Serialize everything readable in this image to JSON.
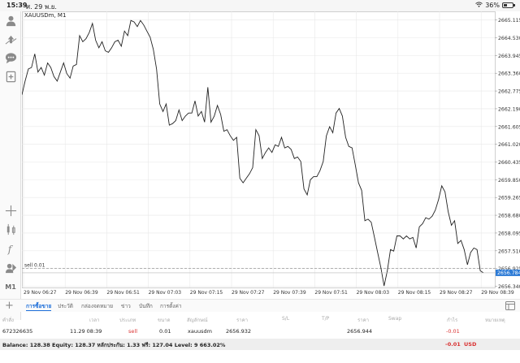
{
  "status_bar": {
    "time": "15:39",
    "date": "ศ. 29 พ.ย.",
    "battery": "36%",
    "battery_level": 0.36
  },
  "left_toolbar": {
    "icons": [
      "account-icon",
      "trade-icon",
      "chat-icon",
      "add-chart-icon",
      "crosshair-icon",
      "indicators-icon",
      "function-icon",
      "objects-icon"
    ],
    "timeframe": "M1"
  },
  "chart": {
    "symbol_label": "XAUUSDm, M1",
    "order_label": "sell 0.01",
    "current_price": "2656.784",
    "colors": {
      "line": "#222222",
      "grid": "#e8e8e8",
      "price_tag": "#2d7bd6",
      "order_line": "#9a9a9a"
    }
  },
  "chart_data": {
    "type": "line",
    "title": "XAUUSDm, M1",
    "x_ticks": [
      "29 Nov 06:27",
      "29 Nov 06:39",
      "29 Nov 06:51",
      "29 Nov 07:03",
      "29 Nov 07:15",
      "29 Nov 07:27",
      "29 Nov 07:39",
      "29 Nov 07:51",
      "29 Nov 08:03",
      "29 Nov 08:15",
      "29 Nov 08:27",
      "29 Nov 08:39"
    ],
    "y_ticks": [
      "2665.115",
      "2664.530",
      "2663.945",
      "2663.360",
      "2662.775",
      "2662.190",
      "2661.605",
      "2661.020",
      "2660.435",
      "2659.850",
      "2659.265",
      "2658.680",
      "2658.095",
      "2657.510",
      "2656.925",
      "2656.340"
    ],
    "ylim": [
      2656.3,
      2665.4
    ],
    "series": [
      {
        "values": [
          2662.65,
          2663.1,
          2663.5,
          2663.55,
          2664.0,
          2663.4,
          2663.55,
          2663.3,
          2663.7,
          2663.55,
          2663.25,
          2663.1,
          2663.4,
          2663.7,
          2663.35,
          2663.2,
          2663.6,
          2663.65,
          2664.6,
          2664.4,
          2664.5,
          2664.7,
          2665.0,
          2664.45,
          2664.2,
          2664.4,
          2664.1,
          2664.05,
          2664.2,
          2664.4,
          2664.45,
          2664.25,
          2664.75,
          2664.6,
          2665.1,
          2665.05,
          2664.9,
          2665.1,
          2664.95,
          2664.75,
          2664.55,
          2664.15,
          2663.5,
          2662.35,
          2662.1,
          2662.35,
          2661.65,
          2661.7,
          2661.8,
          2662.15,
          2661.8,
          2661.95,
          2662.05,
          2662.05,
          2662.45,
          2661.95,
          2662.1,
          2661.75,
          2662.9,
          2661.75,
          2661.95,
          2662.3,
          2662.0,
          2661.45,
          2661.5,
          2661.3,
          2661.15,
          2661.25,
          2659.9,
          2659.75,
          2659.9,
          2660.05,
          2660.25,
          2661.5,
          2661.3,
          2660.55,
          2660.75,
          2660.9,
          2660.75,
          2661.0,
          2660.95,
          2661.25,
          2660.9,
          2660.95,
          2660.85,
          2660.55,
          2660.6,
          2660.45,
          2659.55,
          2659.35,
          2659.85,
          2659.95,
          2659.95,
          2660.15,
          2660.45,
          2661.3,
          2661.6,
          2661.4,
          2662.05,
          2662.2,
          2661.95,
          2661.25,
          2660.95,
          2660.9,
          2660.35,
          2659.75,
          2659.5,
          2658.5,
          2658.55,
          2658.45,
          2657.95,
          2657.45,
          2656.95,
          2656.35,
          2656.85,
          2657.55,
          2657.5,
          2658.0,
          2658.0,
          2657.9,
          2658.0,
          2657.9,
          2657.95,
          2657.6,
          2658.3,
          2658.4,
          2658.6,
          2658.55,
          2658.65,
          2658.85,
          2659.2,
          2659.65,
          2659.45,
          2658.8,
          2658.35,
          2658.5,
          2657.75,
          2657.85,
          2657.55,
          2657.05,
          2657.45,
          2657.6,
          2657.55,
          2656.85,
          2656.784
        ]
      }
    ],
    "grid": true,
    "order_level": 2656.932
  },
  "tabs": {
    "items": [
      "การซื้อขาย",
      "ประวัติ",
      "กล่องจดหมาย",
      "ข่าว",
      "บันทึก",
      "การตั้งค่า"
    ],
    "active_index": 0
  },
  "table": {
    "headers": [
      "คำสั่ง",
      "เวลา",
      "ประเภท",
      "ขนาด",
      "สัญลักษณ์",
      "ราคา",
      "S/L",
      "T/P",
      "ราคา",
      "Swap",
      "กำไร",
      "หมายเหตุ"
    ],
    "rows": [
      {
        "order": "672326635",
        "time": "11.29 08:39",
        "type": "sell",
        "size": "0.01",
        "symbol": "xauusdm",
        "price": "2656.932",
        "sl": "",
        "tp": "",
        "current": "2656.944",
        "swap": "",
        "profit": "-0.01",
        "comment": ""
      }
    ]
  },
  "balance": {
    "text": "Balance: 128.38 Equity: 128.37 หลักประกัน: 1.33 ฟรี: 127.04 Level: 9 663.02%",
    "profit": "-0.01",
    "currency": "USD"
  }
}
